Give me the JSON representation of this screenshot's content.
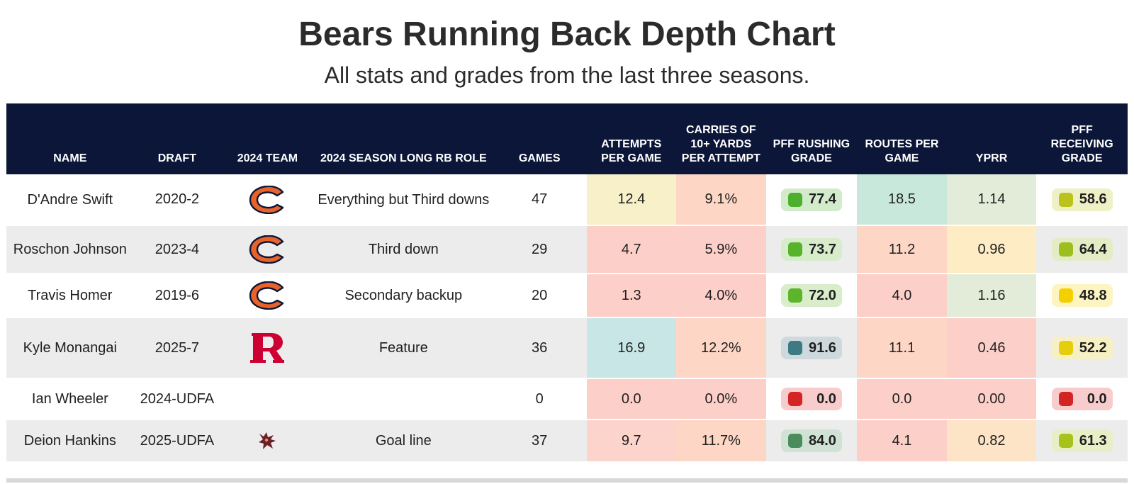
{
  "chart_data": {
    "type": "table",
    "title": "Bears Running Back Depth Chart",
    "subtitle": "All stats and grades from the last three seasons.",
    "columns": [
      "NAME",
      "DRAFT",
      "2024 TEAM",
      "2024 SEASON LONG RB ROLE",
      "GAMES",
      "ATTEMPTS PER GAME",
      "CARRIES OF 10+ YARDS PER ATTEMPT",
      "PFF RUSHING GRADE",
      "ROUTES PER GAME",
      "YPRR",
      "PFF RECEIVING GRADE"
    ],
    "rows": [
      {
        "name": "D'Andre Swift",
        "draft": "2020-2",
        "team": "bears-logo",
        "role": "Everything but Third downs",
        "games": "47",
        "apg": "12.4",
        "c10": "9.1%",
        "rush": "77.4",
        "rpg": "18.5",
        "yprr": "1.14",
        "recv": "58.6"
      },
      {
        "name": "Roschon Johnson",
        "draft": "2023-4",
        "team": "bears-logo",
        "role": "Third down",
        "games": "29",
        "apg": "4.7",
        "c10": "5.9%",
        "rush": "73.7",
        "rpg": "11.2",
        "yprr": "0.96",
        "recv": "64.4"
      },
      {
        "name": "Travis Homer",
        "draft": "2019-6",
        "team": "bears-logo",
        "role": "Secondary backup",
        "games": "20",
        "apg": "1.3",
        "c10": "4.0%",
        "rush": "72.0",
        "rpg": "4.0",
        "yprr": "1.16",
        "recv": "48.8"
      },
      {
        "name": "Kyle Monangai",
        "draft": "2025-7",
        "team": "rutgers-logo",
        "role": "Feature",
        "games": "36",
        "apg": "16.9",
        "c10": "12.2%",
        "rush": "91.6",
        "rpg": "11.1",
        "yprr": "0.46",
        "recv": "52.2"
      },
      {
        "name": "Ian Wheeler",
        "draft": "2024-UDFA",
        "team": "",
        "role": "",
        "games": "0",
        "apg": "0.0",
        "c10": "0.0%",
        "rush": "0.0",
        "rpg": "0.0",
        "yprr": "0.00",
        "recv": "0.0"
      },
      {
        "name": "Deion Hankins",
        "draft": "2025-UDFA",
        "team": "texas-state-logo",
        "role": "Goal line",
        "games": "37",
        "apg": "9.7",
        "c10": "11.7%",
        "rush": "84.0",
        "rpg": "4.1",
        "yprr": "0.82",
        "recv": "61.3"
      }
    ],
    "cell_colors": {
      "apg": [
        "#f7f0c8",
        "#fdcfc9",
        "#fdcfc9",
        "#c8e6e6",
        "#fdcfc9",
        "#fdd4cc"
      ],
      "c10": [
        "#fdd6c6",
        "#fdcfc9",
        "#fdcfc9",
        "#fdd6c6",
        "#fdcfc9",
        "#fdd6c6"
      ],
      "rpg": [
        "#c8e8dc",
        "#fdd6c6",
        "#fdcfc9",
        "#fdd6c6",
        "#fdcfc9",
        "#fdcfc9"
      ],
      "yprr": [
        "#e2ecd8",
        "#fdecc4",
        "#e2ecd8",
        "#fdcfc9",
        "#fdcfc9",
        "#fde4c6"
      ]
    },
    "grade_colors": {
      "rush": [
        {
          "dot": "#4caf2e",
          "bg": "#d2ebca"
        },
        {
          "dot": "#56b32a",
          "bg": "#d6ecca"
        },
        {
          "dot": "#5cb52a",
          "bg": "#d8edca"
        },
        {
          "dot": "#3d7a84",
          "bg": "#cdd9dd"
        },
        {
          "dot": "#d42525",
          "bg": "#f8cccc"
        },
        {
          "dot": "#4a8c5c",
          "bg": "#d0e2d4"
        }
      ],
      "recv": [
        {
          "dot": "#bcc21c",
          "bg": "#eef0c6"
        },
        {
          "dot": "#9cbf1e",
          "bg": "#e4ecc6"
        },
        {
          "dot": "#f4d000",
          "bg": "#fdf4c2"
        },
        {
          "dot": "#e6ce0c",
          "bg": "#f6f0c4"
        },
        {
          "dot": "#d42525",
          "bg": "#f8cccc"
        },
        {
          "dot": "#a8c21c",
          "bg": "#e8eec6"
        }
      ]
    },
    "colors": {
      "header_bg": "#0b1638",
      "bears_orange": "#e8632b",
      "bears_navy": "#0b1638",
      "rutgers_red": "#cc0033",
      "texas_state_maroon": "#6a1f2a"
    }
  }
}
